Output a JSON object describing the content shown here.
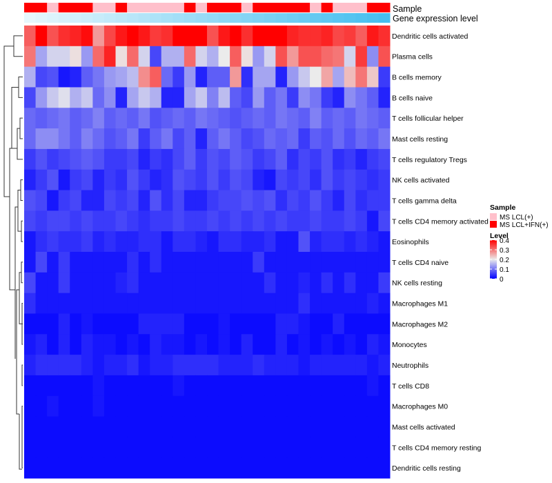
{
  "chart_data": {
    "type": "heatmap",
    "annotation_labels": {
      "sample": "Sample",
      "gene": "Gene expression level"
    },
    "row_labels": [
      "Dendritic cells activated",
      "Plasma cells",
      "B cells memory",
      "B cells naive",
      "T cells follicular helper",
      "Mast cells resting",
      "T cells regulatory  Tregs",
      "NK cells activated",
      "T cells gamma delta",
      "T cells CD4 memory activated",
      "Eosinophils",
      "T cells CD4 naive",
      "NK cells resting",
      "Macrophages M1",
      "Macrophages M2",
      "Monocytes",
      "Neutrophils",
      "T cells CD8",
      "Macrophages M0",
      "Mast cells activated",
      "T cells CD4 memory resting",
      "Dendritic cells resting"
    ],
    "sample_groups": [
      "IFN",
      "IFN",
      "LCL",
      "IFN",
      "IFN",
      "IFN",
      "LCL",
      "LCL",
      "IFN",
      "LCL",
      "LCL",
      "LCL",
      "LCL",
      "LCL",
      "IFN",
      "LCL",
      "IFN",
      "IFN",
      "IFN",
      "LCL",
      "IFN",
      "IFN",
      "IFN",
      "IFN",
      "IFN",
      "LCL",
      "IFN",
      "LCL",
      "LCL",
      "LCL",
      "IFN",
      "IFN"
    ],
    "gene_expression": [
      0.02,
      0.05,
      0.08,
      0.11,
      0.14,
      0.17,
      0.2,
      0.23,
      0.26,
      0.29,
      0.32,
      0.35,
      0.38,
      0.41,
      0.44,
      0.47,
      0.5,
      0.53,
      0.56,
      0.59,
      0.62,
      0.65,
      0.68,
      0.71,
      0.74,
      0.77,
      0.8,
      0.83,
      0.86,
      0.89,
      0.92,
      0.95
    ],
    "values": [
      [
        0.32,
        0.4,
        0.33,
        0.36,
        0.37,
        0.39,
        0.27,
        0.34,
        0.38,
        0.4,
        0.38,
        0.35,
        0.36,
        0.4,
        0.4,
        0.4,
        0.33,
        0.38,
        0.4,
        0.36,
        0.4,
        0.4,
        0.4,
        0.37,
        0.36,
        0.36,
        0.37,
        0.34,
        0.35,
        0.32,
        0.38,
        0.36
      ],
      [
        0.3,
        0.14,
        0.18,
        0.18,
        0.21,
        0.13,
        0.31,
        0.37,
        0.21,
        0.31,
        0.18,
        0.06,
        0.15,
        0.15,
        0.31,
        0.18,
        0.15,
        0.2,
        0.32,
        0.21,
        0.13,
        0.18,
        0.33,
        0.27,
        0.33,
        0.33,
        0.31,
        0.3,
        0.18,
        0.35,
        0.12,
        0.33
      ],
      [
        0.15,
        0.06,
        0.07,
        0.02,
        0.03,
        0.08,
        0.1,
        0.13,
        0.14,
        0.16,
        0.28,
        0.32,
        0.09,
        0.05,
        0.13,
        0.03,
        0.08,
        0.08,
        0.27,
        0.04,
        0.14,
        0.14,
        0.03,
        0.13,
        0.17,
        0.2,
        0.26,
        0.14,
        0.24,
        0.3,
        0.23,
        0.05
      ],
      [
        0.06,
        0.13,
        0.17,
        0.19,
        0.15,
        0.17,
        0.09,
        0.12,
        0.03,
        0.14,
        0.17,
        0.15,
        0.03,
        0.03,
        0.14,
        0.17,
        0.11,
        0.16,
        0.08,
        0.06,
        0.13,
        0.08,
        0.1,
        0.05,
        0.12,
        0.1,
        0.05,
        0.03,
        0.12,
        0.1,
        0.08,
        0.03
      ],
      [
        0.09,
        0.08,
        0.09,
        0.1,
        0.08,
        0.09,
        0.11,
        0.08,
        0.09,
        0.08,
        0.1,
        0.07,
        0.08,
        0.09,
        0.08,
        0.1,
        0.09,
        0.08,
        0.07,
        0.08,
        0.09,
        0.08,
        0.1,
        0.09,
        0.08,
        0.11,
        0.08,
        0.09,
        0.08,
        0.1,
        0.09,
        0.08
      ],
      [
        0.09,
        0.12,
        0.12,
        0.1,
        0.08,
        0.11,
        0.09,
        0.07,
        0.08,
        0.1,
        0.05,
        0.08,
        0.1,
        0.06,
        0.08,
        0.03,
        0.08,
        0.1,
        0.08,
        0.06,
        0.07,
        0.09,
        0.08,
        0.09,
        0.05,
        0.08,
        0.07,
        0.09,
        0.07,
        0.09,
        0.08,
        0.1
      ],
      [
        0.05,
        0.07,
        0.05,
        0.06,
        0.07,
        0.08,
        0.07,
        0.05,
        0.05,
        0.06,
        0.03,
        0.05,
        0.04,
        0.06,
        0.08,
        0.05,
        0.07,
        0.06,
        0.08,
        0.07,
        0.05,
        0.06,
        0.08,
        0.04,
        0.06,
        0.05,
        0.07,
        0.04,
        0.05,
        0.03,
        0.05,
        0.06
      ],
      [
        0.03,
        0.05,
        0.07,
        0.02,
        0.05,
        0.06,
        0.03,
        0.05,
        0.04,
        0.07,
        0.05,
        0.03,
        0.04,
        0.07,
        0.06,
        0.05,
        0.07,
        0.05,
        0.07,
        0.06,
        0.03,
        0.02,
        0.06,
        0.05,
        0.06,
        0.04,
        0.07,
        0.05,
        0.06,
        0.05,
        0.04,
        0.05
      ],
      [
        0.07,
        0.06,
        0.02,
        0.05,
        0.06,
        0.03,
        0.03,
        0.06,
        0.05,
        0.06,
        0.03,
        0.07,
        0.04,
        0.06,
        0.03,
        0.03,
        0.05,
        0.06,
        0.06,
        0.07,
        0.06,
        0.07,
        0.04,
        0.06,
        0.05,
        0.07,
        0.05,
        0.03,
        0.06,
        0.04,
        0.05,
        0.05
      ],
      [
        0.06,
        0.05,
        0.06,
        0.06,
        0.05,
        0.06,
        0.05,
        0.05,
        0.06,
        0.05,
        0.04,
        0.05,
        0.05,
        0.06,
        0.05,
        0.05,
        0.06,
        0.05,
        0.06,
        0.05,
        0.06,
        0.05,
        0.06,
        0.05,
        0.05,
        0.06,
        0.05,
        0.05,
        0.06,
        0.05,
        0.02,
        0.06
      ],
      [
        0.02,
        0.04,
        0.05,
        0.04,
        0.04,
        0.05,
        0.03,
        0.04,
        0.03,
        0.03,
        0.04,
        0.04,
        0.02,
        0.04,
        0.04,
        0.03,
        0.02,
        0.04,
        0.04,
        0.03,
        0.03,
        0.04,
        0.02,
        0.02,
        0.07,
        0.03,
        0.04,
        0.04,
        0.03,
        0.04,
        0.03,
        0.02
      ],
      [
        0.02,
        0.06,
        0.02,
        0.05,
        0.02,
        0.02,
        0.02,
        0.02,
        0.02,
        0.04,
        0.02,
        0.04,
        0.02,
        0.02,
        0.02,
        0.02,
        0.02,
        0.02,
        0.02,
        0.02,
        0.05,
        0.02,
        0.02,
        0.02,
        0.02,
        0.02,
        0.02,
        0.02,
        0.02,
        0.02,
        0.02,
        0.02
      ],
      [
        0.06,
        0.02,
        0.02,
        0.05,
        0.02,
        0.02,
        0.02,
        0.02,
        0.03,
        0.04,
        0.02,
        0.02,
        0.02,
        0.02,
        0.02,
        0.02,
        0.02,
        0.02,
        0.02,
        0.02,
        0.02,
        0.04,
        0.02,
        0.02,
        0.03,
        0.02,
        0.04,
        0.02,
        0.04,
        0.02,
        0.02,
        0.05
      ],
      [
        0.04,
        0.02,
        0.02,
        0.02,
        0.02,
        0.02,
        0.02,
        0.02,
        0.02,
        0.02,
        0.02,
        0.02,
        0.02,
        0.02,
        0.02,
        0.02,
        0.02,
        0.02,
        0.02,
        0.02,
        0.02,
        0.02,
        0.02,
        0.02,
        0.04,
        0.02,
        0.02,
        0.02,
        0.02,
        0.02,
        0.03,
        0.02
      ],
      [
        0.01,
        0.01,
        0.01,
        0.03,
        0.01,
        0.02,
        0.01,
        0.01,
        0.01,
        0.01,
        0.03,
        0.03,
        0.03,
        0.03,
        0.01,
        0.01,
        0.01,
        0.02,
        0.01,
        0.01,
        0.01,
        0.01,
        0.03,
        0.03,
        0.02,
        0.01,
        0.01,
        0.03,
        0.01,
        0.01,
        0.01,
        0.01
      ],
      [
        0.02,
        0.03,
        0.01,
        0.03,
        0.01,
        0.03,
        0.02,
        0.02,
        0.01,
        0.02,
        0.01,
        0.03,
        0.02,
        0.02,
        0.01,
        0.02,
        0.01,
        0.02,
        0.01,
        0.03,
        0.01,
        0.01,
        0.03,
        0.01,
        0.02,
        0.01,
        0.02,
        0.01,
        0.02,
        0.01,
        0.03,
        0.02
      ],
      [
        0.03,
        0.04,
        0.04,
        0.04,
        0.04,
        0.03,
        0.02,
        0.03,
        0.03,
        0.04,
        0.02,
        0.03,
        0.03,
        0.04,
        0.04,
        0.04,
        0.04,
        0.03,
        0.03,
        0.03,
        0.04,
        0.03,
        0.03,
        0.03,
        0.02,
        0.03,
        0.03,
        0.03,
        0.03,
        0.03,
        0.02,
        0.03
      ],
      [
        0.01,
        0.01,
        0.01,
        0.01,
        0.01,
        0.01,
        0.02,
        0.01,
        0.01,
        0.01,
        0.01,
        0.01,
        0.01,
        0.02,
        0.01,
        0.01,
        0.01,
        0.01,
        0.01,
        0.01,
        0.01,
        0.01,
        0.01,
        0.01,
        0.01,
        0.01,
        0.01,
        0.01,
        0.01,
        0.01,
        0.02,
        0.01
      ],
      [
        0.01,
        0.01,
        0.02,
        0.01,
        0.01,
        0.01,
        0.02,
        0.01,
        0.01,
        0.01,
        0.01,
        0.01,
        0.01,
        0.01,
        0.01,
        0.01,
        0.01,
        0.01,
        0.01,
        0.01,
        0.01,
        0.01,
        0.01,
        0.01,
        0.01,
        0.01,
        0.01,
        0.01,
        0.01,
        0.01,
        0.01,
        0.01
      ],
      [
        0.01,
        0.01,
        0.01,
        0.01,
        0.01,
        0.01,
        0.01,
        0.01,
        0.01,
        0.01,
        0.01,
        0.01,
        0.01,
        0.01,
        0.01,
        0.01,
        0.01,
        0.01,
        0.01,
        0.01,
        0.01,
        0.01,
        0.01,
        0.01,
        0.01,
        0.01,
        0.01,
        0.01,
        0.01,
        0.01,
        0.01,
        0.01
      ],
      [
        0.01,
        0.01,
        0.01,
        0.01,
        0.01,
        0.01,
        0.01,
        0.01,
        0.01,
        0.01,
        0.01,
        0.01,
        0.01,
        0.01,
        0.01,
        0.01,
        0.01,
        0.01,
        0.01,
        0.01,
        0.01,
        0.01,
        0.01,
        0.01,
        0.01,
        0.01,
        0.01,
        0.01,
        0.01,
        0.01,
        0.01,
        0.01
      ],
      [
        0.01,
        0.01,
        0.01,
        0.01,
        0.01,
        0.01,
        0.01,
        0.01,
        0.01,
        0.01,
        0.01,
        0.01,
        0.01,
        0.01,
        0.01,
        0.01,
        0.01,
        0.01,
        0.01,
        0.01,
        0.01,
        0.01,
        0.01,
        0.01,
        0.01,
        0.01,
        0.01,
        0.01,
        0.01,
        0.01,
        0.01,
        0.01
      ]
    ],
    "legend": {
      "sample_title": "Sample",
      "sample_items": [
        {
          "label": "MS LCL(+)",
          "color": "#ffc0cb"
        },
        {
          "label": "MS LCL+IFN(+)",
          "color": "#ff0000"
        }
      ],
      "level_title": "Level",
      "level_ticks": [
        "0.4",
        "0.3",
        "0.2",
        "0.1",
        "0"
      ],
      "level_range": [
        0,
        0.4
      ]
    },
    "colors": {
      "low": "#0000ff",
      "mid": "#ebebeb",
      "high": "#ff0000",
      "gene_low": "#eaf8fd",
      "gene_high": "#3dbbee"
    }
  }
}
